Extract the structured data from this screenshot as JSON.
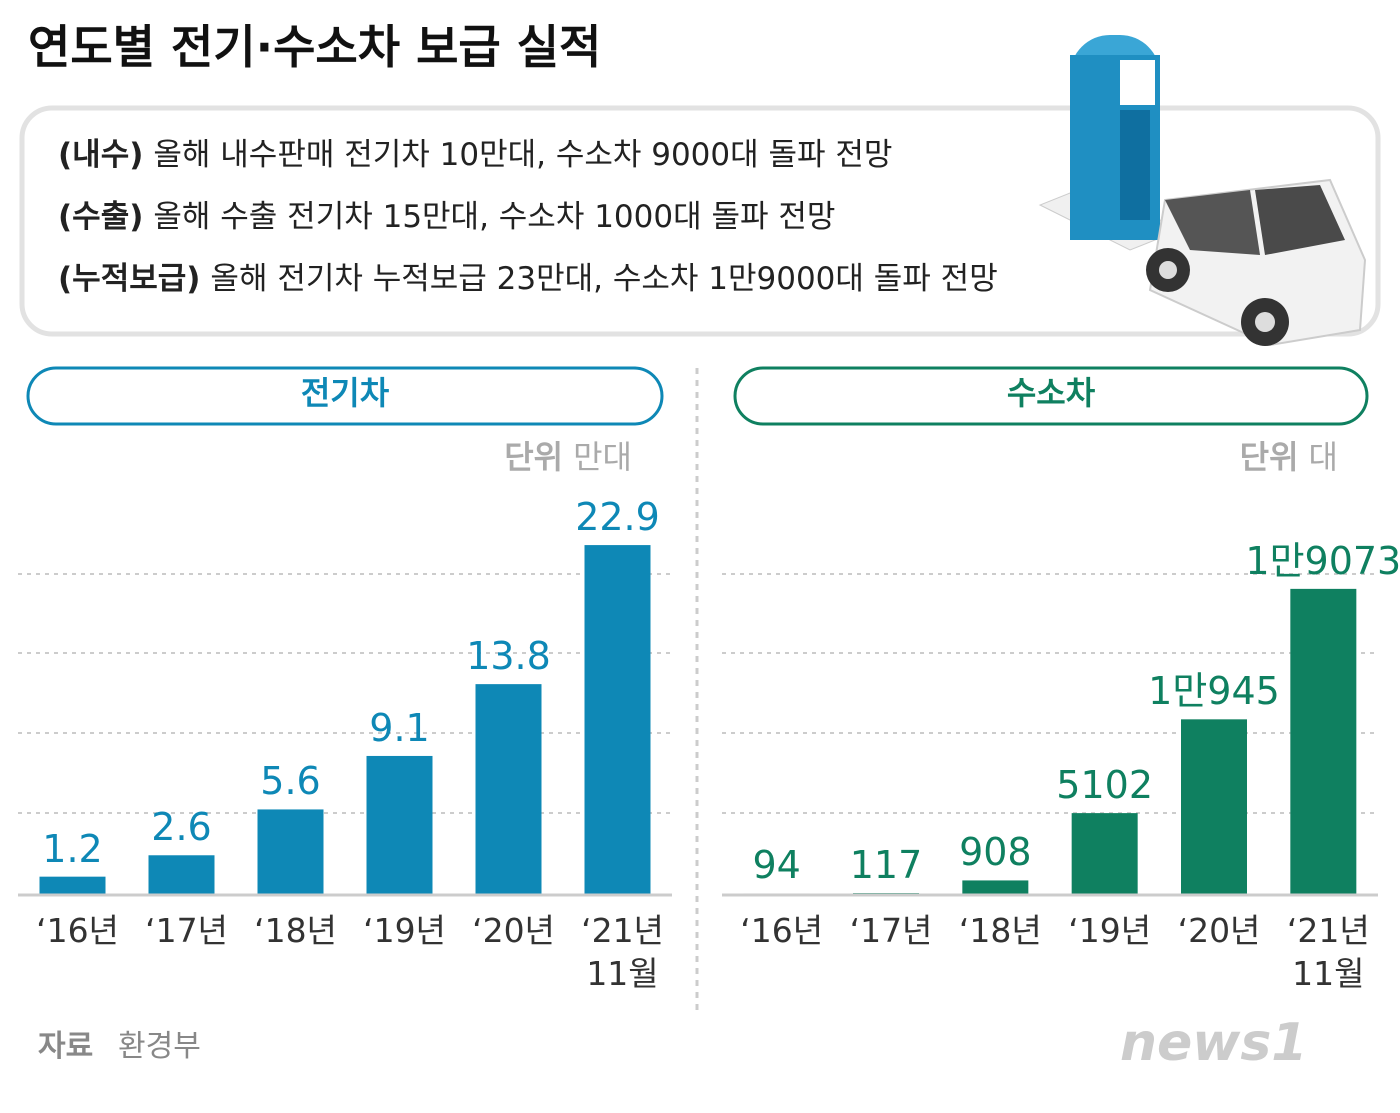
{
  "title": "연도별 전기·수소차 보급 실적",
  "notes": [
    {
      "label": "(내수)",
      "text": "올해 내수판매 전기차 10만대, 수소차 9000대 돌파 전망"
    },
    {
      "label": "(수출)",
      "text": "올해 수출 전기차 15만대, 수소차 1000대 돌파 전망"
    },
    {
      "label": "(누적보급)",
      "text": "올해 전기차 누적보급 23만대, 수소차 1만9000대 돌파 전망"
    }
  ],
  "chart_data": [
    {
      "type": "bar",
      "title": "전기차",
      "unit_label": "단위",
      "unit": "만대",
      "categories": [
        "‘16년",
        "‘17년",
        "‘18년",
        "‘19년",
        "‘20년",
        "‘21년\n11월"
      ],
      "values": [
        1.2,
        2.6,
        5.6,
        9.1,
        13.8,
        22.9
      ],
      "color": "#0e88b6",
      "ylim": [
        0,
        25
      ]
    },
    {
      "type": "bar",
      "title": "수소차",
      "unit_label": "단위",
      "unit": "대",
      "categories": [
        "‘16년",
        "‘17년",
        "‘18년",
        "‘19년",
        "‘20년",
        "‘21년\n11월"
      ],
      "values": [
        94,
        117,
        908,
        5102,
        10945,
        19073
      ],
      "value_labels": [
        "94",
        "117",
        "908",
        "5102",
        "1만945",
        "1만9073"
      ],
      "color": "#0f8060",
      "ylim": [
        0,
        23800
      ]
    }
  ],
  "source_label": "자료",
  "source": "환경부",
  "logo": "news1"
}
